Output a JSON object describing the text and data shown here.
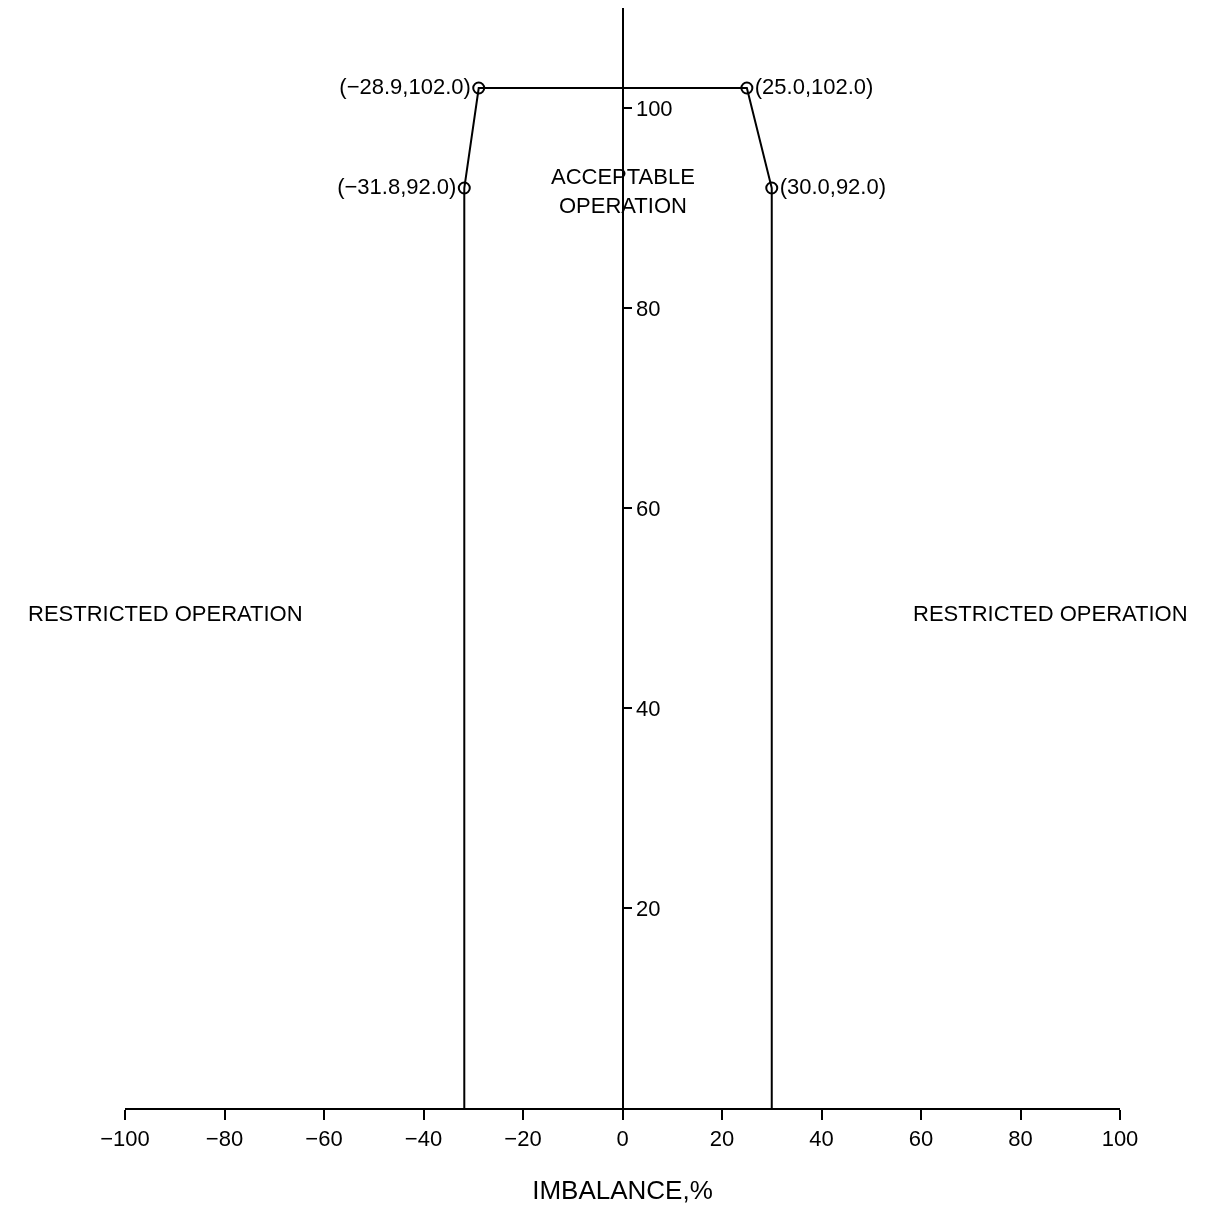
{
  "chart_data": {
    "type": "line",
    "xlabel": "IMBALANCE,%",
    "xlim": [
      -100,
      100
    ],
    "xticks": [
      -100,
      -80,
      -60,
      -40,
      -20,
      0,
      20,
      40,
      60,
      80,
      100
    ],
    "ylim": [
      0,
      110
    ],
    "yticks": [
      20,
      40,
      60,
      80,
      100
    ],
    "series": [
      {
        "color": "#000000",
        "marker": "none",
        "x": [
          -31.8,
          -31.8,
          -28.9,
          25.0,
          30.0,
          30.0
        ],
        "values": [
          0,
          92.0,
          102.0,
          102.0,
          92.0,
          0
        ]
      },
      {
        "type": "scatter",
        "color": "#000000",
        "marker": "circle",
        "x": [
          -31.8,
          -28.9,
          25.0,
          30.0
        ],
        "values": [
          92.0,
          102.0,
          102.0,
          92.0
        ],
        "value_labels": [
          "(−31.8,92.0)",
          "(−28.9,102.0)",
          "(25.0,102.0)",
          "(30.0,92.0)"
        ]
      }
    ],
    "annotations": [
      "ACCEPTABLE\nOPERATION",
      "RESTRICTED OPERATION",
      "RESTRICTED OPERATION"
    ]
  }
}
